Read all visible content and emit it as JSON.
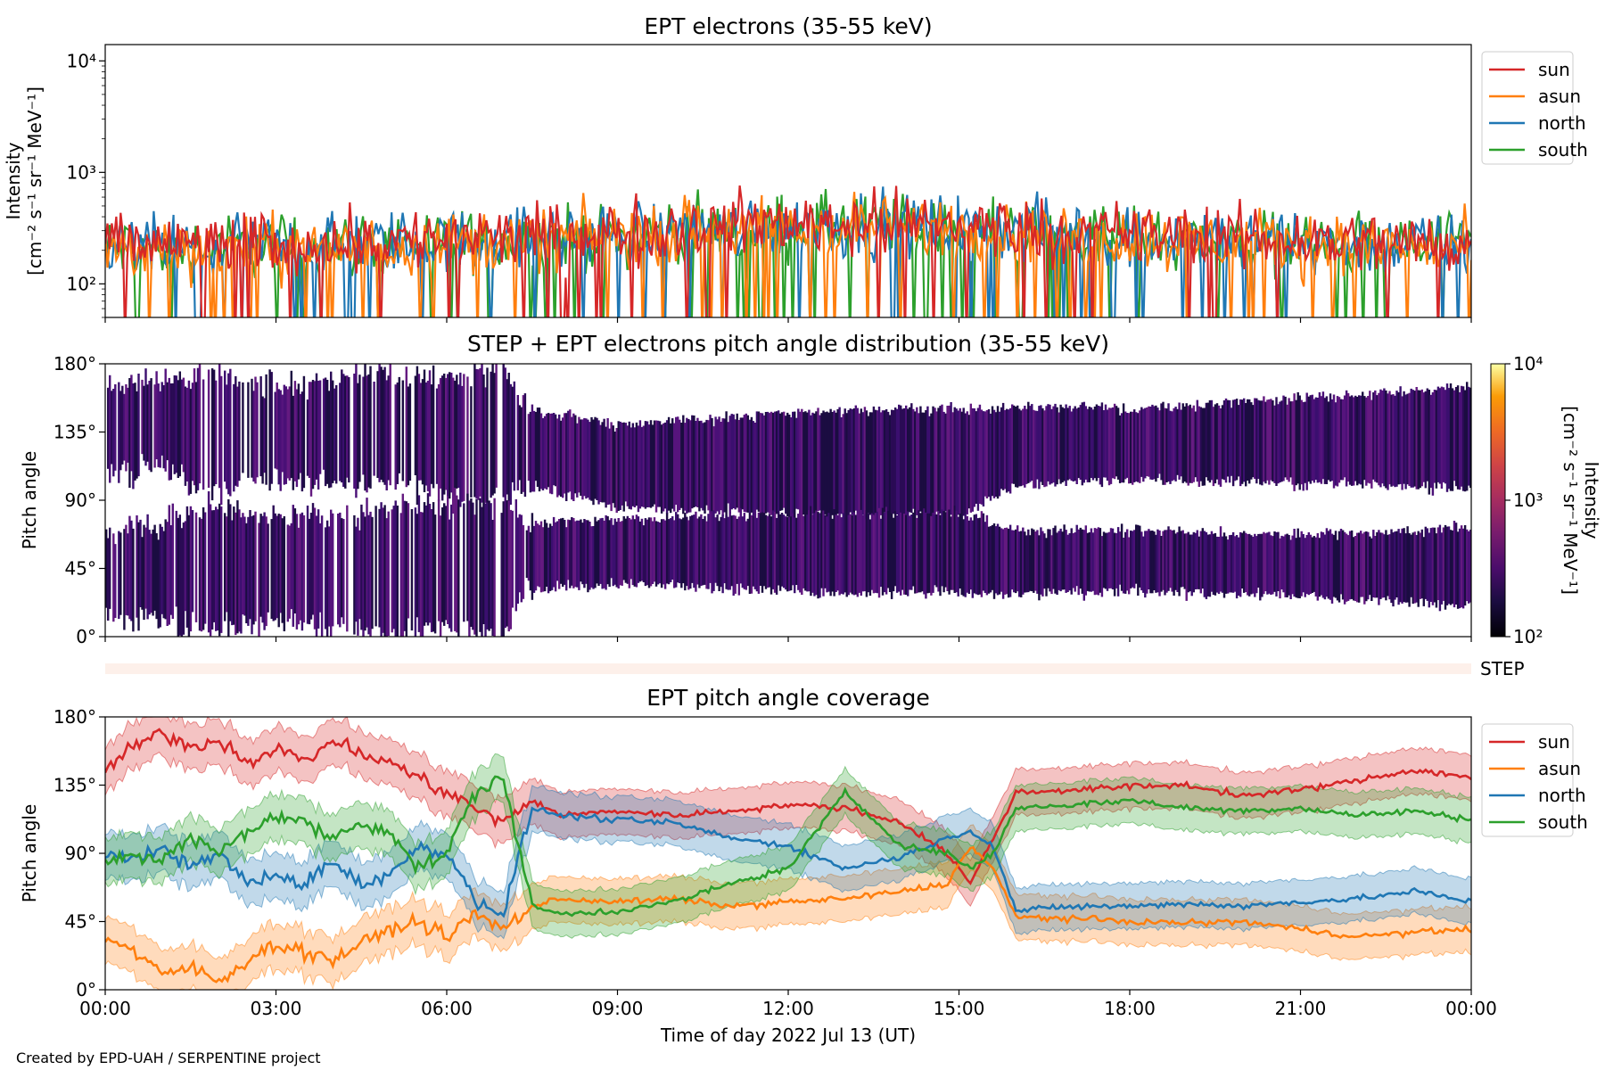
{
  "figure": {
    "footer": "Created by EPD-UAH / SERPENTINE project",
    "xlabel": "Time of day 2022 Jul 13 (UT)",
    "step_label": "STEP",
    "colors": {
      "sun": "#d62728",
      "asun": "#ff7f0e",
      "north": "#1f77b4",
      "south": "#2ca02c",
      "step_bar": "#fdf0ea"
    }
  },
  "chart_data": [
    {
      "type": "line",
      "title": "EPT electrons (35-55 keV)",
      "ylabel_line1": "Intensity",
      "ylabel_line2": "[cm⁻² s⁻¹ sr⁻¹ MeV⁻¹]",
      "yscale": "log",
      "ylim": [
        50,
        14000
      ],
      "yticks": [
        "10²",
        "10³",
        "10⁴"
      ],
      "xlim_hours": [
        0,
        24
      ],
      "legend": [
        "sun",
        "asun",
        "north",
        "south"
      ],
      "legend_position": "outside right, top",
      "series": [
        {
          "name": "sun",
          "x_hours": [
            0,
            2,
            4,
            6,
            8,
            10,
            12,
            14,
            16,
            18,
            20,
            22,
            24
          ],
          "values": [
            220,
            230,
            240,
            250,
            270,
            320,
            360,
            350,
            320,
            280,
            260,
            240,
            230
          ]
        },
        {
          "name": "asun",
          "x_hours": [
            0,
            2,
            4,
            6,
            8,
            10,
            12,
            14,
            16,
            18,
            20,
            22,
            24
          ],
          "values": [
            200,
            210,
            220,
            230,
            260,
            300,
            330,
            330,
            300,
            260,
            240,
            220,
            210
          ]
        },
        {
          "name": "north",
          "x_hours": [
            0,
            2,
            4,
            6,
            8,
            10,
            12,
            14,
            16,
            18,
            20,
            22,
            24
          ],
          "values": [
            210,
            220,
            230,
            240,
            260,
            300,
            340,
            340,
            310,
            270,
            250,
            230,
            220
          ]
        },
        {
          "name": "south",
          "x_hours": [
            0,
            2,
            4,
            6,
            8,
            10,
            12,
            14,
            16,
            18,
            20,
            22,
            24
          ],
          "values": [
            205,
            215,
            225,
            235,
            255,
            295,
            330,
            335,
            305,
            265,
            245,
            225,
            215
          ]
        }
      ]
    },
    {
      "type": "heatmap",
      "title": "STEP + EPT electrons pitch angle distribution (35-55 keV)",
      "ylabel": "Pitch angle",
      "ylim": [
        0,
        180
      ],
      "yticks": [
        "0°",
        "45°",
        "90°",
        "135°",
        "180°"
      ],
      "xlim_hours": [
        0,
        24
      ],
      "colorbar": {
        "label_line1": "Intensity",
        "label_line2": "[cm⁻² s⁻¹ sr⁻¹ MeV⁻¹]",
        "scale": "log",
        "range": [
          100,
          10000
        ],
        "ticks": [
          "10²",
          "10³",
          "10⁴"
        ],
        "colormap": "inferno"
      },
      "bands": [
        {
          "name": "upper",
          "x_hours": [
            0,
            1,
            2,
            3,
            4,
            5,
            6,
            7,
            7.4,
            9,
            11,
            13,
            15,
            16,
            18,
            20,
            22,
            24
          ],
          "low_deg": [
            108,
            110,
            95,
            105,
            100,
            100,
            95,
            90,
            100,
            85,
            82,
            80,
            80,
            100,
            103,
            102,
            100,
            98
          ],
          "high_deg": [
            165,
            170,
            175,
            165,
            170,
            175,
            170,
            178,
            150,
            140,
            145,
            150,
            150,
            152,
            150,
            155,
            160,
            165
          ]
        },
        {
          "name": "lower",
          "x_hours": [
            0,
            1,
            2,
            3,
            4,
            5,
            6,
            7,
            7.4,
            9,
            11,
            13,
            15,
            16,
            18,
            20,
            22,
            24
          ],
          "low_deg": [
            15,
            10,
            5,
            10,
            5,
            0,
            5,
            0,
            30,
            35,
            32,
            28,
            30,
            28,
            30,
            28,
            25,
            20
          ],
          "high_deg": [
            72,
            75,
            85,
            80,
            80,
            85,
            88,
            90,
            75,
            78,
            80,
            82,
            82,
            70,
            70,
            68,
            68,
            72
          ]
        }
      ]
    },
    {
      "type": "line",
      "title": "EPT pitch angle coverage",
      "ylabel": "Pitch angle",
      "ylim": [
        0,
        180
      ],
      "yticks": [
        "0°",
        "45°",
        "90°",
        "135°",
        "180°"
      ],
      "xlim_hours": [
        0,
        24
      ],
      "xticks": [
        "00:00",
        "03:00",
        "06:00",
        "09:00",
        "12:00",
        "15:00",
        "18:00",
        "21:00",
        "00:00"
      ],
      "legend": [
        "sun",
        "asun",
        "north",
        "south"
      ],
      "legend_position": "outside right, top",
      "band_halfwidth_deg": 15,
      "series": [
        {
          "name": "sun",
          "x_hours": [
            0,
            0.5,
            1,
            1.5,
            2,
            2.5,
            3,
            3.5,
            4,
            4.5,
            5,
            5.5,
            6,
            6.5,
            7,
            7.5,
            8,
            9,
            10,
            11,
            12,
            13,
            14,
            14.8,
            15.2,
            15.6,
            16,
            17,
            18,
            19,
            20,
            21,
            22,
            23,
            24
          ],
          "values": [
            145,
            160,
            170,
            160,
            165,
            150,
            160,
            150,
            165,
            155,
            150,
            140,
            130,
            120,
            110,
            125,
            115,
            118,
            115,
            118,
            122,
            120,
            110,
            90,
            70,
            100,
            130,
            132,
            134,
            135,
            128,
            132,
            138,
            145,
            140
          ]
        },
        {
          "name": "asun",
          "x_hours": [
            0,
            0.5,
            1,
            1.5,
            2,
            2.5,
            3,
            3.5,
            4,
            4.5,
            5,
            5.5,
            6,
            6.5,
            7,
            7.5,
            8,
            9,
            10,
            11,
            12,
            13,
            14,
            14.8,
            15.2,
            15.6,
            16,
            17,
            18,
            19,
            20,
            21,
            22,
            23,
            24
          ],
          "values": [
            35,
            25,
            10,
            15,
            5,
            20,
            30,
            25,
            20,
            30,
            40,
            45,
            35,
            50,
            40,
            55,
            60,
            58,
            60,
            55,
            58,
            60,
            65,
            70,
            95,
            80,
            48,
            47,
            45,
            44,
            45,
            40,
            35,
            38,
            40
          ]
        },
        {
          "name": "north",
          "x_hours": [
            0,
            0.5,
            1,
            1.5,
            2,
            2.5,
            3,
            3.5,
            4,
            4.5,
            5,
            5.5,
            6,
            6.5,
            7,
            7.5,
            8,
            9,
            10,
            11,
            12,
            13,
            14,
            14.8,
            15.2,
            15.6,
            16,
            17,
            18,
            19,
            20,
            21,
            22,
            23,
            24
          ],
          "values": [
            90,
            85,
            95,
            80,
            90,
            70,
            75,
            70,
            85,
            70,
            75,
            95,
            90,
            60,
            50,
            120,
            115,
            112,
            110,
            100,
            95,
            80,
            88,
            100,
            105,
            95,
            52,
            55,
            55,
            57,
            55,
            58,
            60,
            65,
            58
          ]
        },
        {
          "name": "south",
          "x_hours": [
            0,
            0.5,
            1,
            1.5,
            2,
            2.5,
            3,
            3.5,
            4,
            4.5,
            5,
            5.5,
            6,
            6.5,
            7,
            7.5,
            8,
            9,
            10,
            11,
            12,
            13,
            14,
            14.8,
            15.2,
            15.6,
            16,
            17,
            18,
            19,
            20,
            21,
            22,
            23,
            24
          ],
          "values": [
            85,
            90,
            85,
            100,
            90,
            105,
            115,
            110,
            100,
            110,
            105,
            80,
            90,
            130,
            140,
            55,
            50,
            52,
            58,
            70,
            80,
            130,
            95,
            90,
            80,
            90,
            120,
            122,
            125,
            120,
            118,
            120,
            115,
            118,
            112
          ]
        }
      ]
    }
  ]
}
